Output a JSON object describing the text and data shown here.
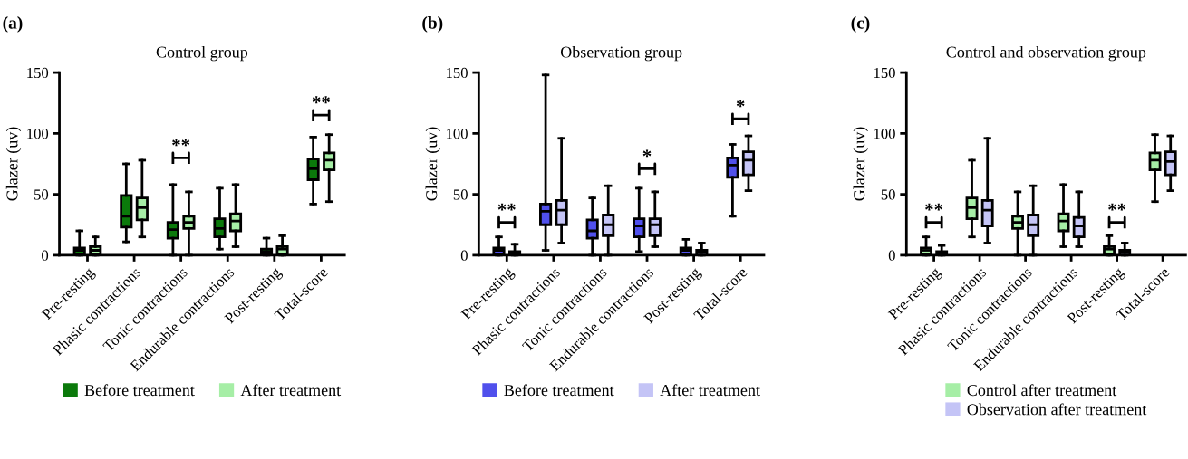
{
  "chart_data": [
    {
      "type": "box",
      "title": "Control group",
      "ylabel": "Glazer (uv)",
      "categories": [
        "Pre-resting",
        "Phasic contractions",
        "Tonic contractions",
        "Endurable contractions",
        "Post-resting",
        "Total-score"
      ],
      "ylim": [
        0,
        150
      ],
      "yticks": [
        0,
        50,
        100,
        150
      ],
      "grid": false,
      "legend": "bottom",
      "series": [
        {
          "name": "Before treatment",
          "color": "#0b7a0b",
          "boxes": [
            {
              "low": 0,
              "q1": 1,
              "median": 4,
              "q3": 6,
              "high": 20
            },
            {
              "low": 11,
              "q1": 23,
              "median": 32,
              "q3": 49,
              "high": 75
            },
            {
              "low": 0,
              "q1": 14,
              "median": 21,
              "q3": 27,
              "high": 58
            },
            {
              "low": 5,
              "q1": 15,
              "median": 22,
              "q3": 30,
              "high": 55
            },
            {
              "low": 0,
              "q1": 1,
              "median": 3,
              "q3": 5,
              "high": 14
            },
            {
              "low": 42,
              "q1": 62,
              "median": 71,
              "q3": 79,
              "high": 97
            }
          ]
        },
        {
          "name": "After treatment",
          "color": "#a6eea6",
          "boxes": [
            {
              "low": 0,
              "q1": 1,
              "median": 4,
              "q3": 7,
              "high": 15
            },
            {
              "low": 15,
              "q1": 29,
              "median": 39,
              "q3": 47,
              "high": 78
            },
            {
              "low": 0,
              "q1": 22,
              "median": 27,
              "q3": 32,
              "high": 52
            },
            {
              "low": 7,
              "q1": 20,
              "median": 28,
              "q3": 34,
              "high": 58
            },
            {
              "low": 0,
              "q1": 1,
              "median": 5,
              "q3": 7,
              "high": 16
            },
            {
              "low": 44,
              "q1": 70,
              "median": 78,
              "q3": 84,
              "high": 99
            }
          ]
        }
      ],
      "annotations": [
        "(a)",
        {
          "text": "**",
          "x": "Tonic contractions",
          "y": 80
        },
        {
          "text": "**",
          "x": "Total-score",
          "y": 115
        }
      ]
    },
    {
      "type": "box",
      "title": "Observation group",
      "ylabel": "Glazer (uv)",
      "categories": [
        "Pre-resting",
        "Phasic contractions",
        "Tonic contractions",
        "Endurable contractions",
        "Post-resting",
        "Total-score"
      ],
      "ylim": [
        0,
        150
      ],
      "yticks": [
        0,
        50,
        100,
        150
      ],
      "grid": false,
      "legend": "bottom",
      "series": [
        {
          "name": "Before treatment",
          "color": "#5050ec",
          "boxes": [
            {
              "low": 0,
              "q1": 1,
              "median": 4,
              "q3": 6,
              "high": 15
            },
            {
              "low": 4,
              "q1": 25,
              "median": 36,
              "q3": 42,
              "high": 148
            },
            {
              "low": 0,
              "q1": 14,
              "median": 20,
              "q3": 29,
              "high": 47
            },
            {
              "low": 3,
              "q1": 15,
              "median": 24,
              "q3": 30,
              "high": 55
            },
            {
              "low": 0,
              "q1": 1,
              "median": 4,
              "q3": 6,
              "high": 13
            },
            {
              "low": 32,
              "q1": 64,
              "median": 74,
              "q3": 80,
              "high": 91
            }
          ]
        },
        {
          "name": "After treatment",
          "color": "#c4c4f6",
          "boxes": [
            {
              "low": 0,
              "q1": 0,
              "median": 1,
              "q3": 3,
              "high": 9
            },
            {
              "low": 10,
              "q1": 25,
              "median": 37,
              "q3": 45,
              "high": 96
            },
            {
              "low": 0,
              "q1": 16,
              "median": 25,
              "q3": 33,
              "high": 57
            },
            {
              "low": 7,
              "q1": 16,
              "median": 25,
              "q3": 30,
              "high": 52
            },
            {
              "low": 0,
              "q1": 0,
              "median": 2,
              "q3": 4,
              "high": 10
            },
            {
              "low": 53,
              "q1": 66,
              "median": 78,
              "q3": 85,
              "high": 98
            }
          ]
        }
      ],
      "annotations": [
        "(b)",
        {
          "text": "**",
          "x": "Pre-resting",
          "y": 27
        },
        {
          "text": "*",
          "x": "Endurable contractions",
          "y": 71
        },
        {
          "text": "*",
          "x": "Total-score",
          "y": 112
        }
      ]
    },
    {
      "type": "box",
      "title": "Control and observation group",
      "ylabel": "Glazer (uv)",
      "categories": [
        "Pre-resting",
        "Phasic contractions",
        "Tonic contractions",
        "Endurable contractions",
        "Post-resting",
        "Total-score"
      ],
      "ylim": [
        0,
        150
      ],
      "yticks": [
        0,
        50,
        100,
        150
      ],
      "grid": false,
      "legend": "bottom",
      "series": [
        {
          "name": "Control after treatment",
          "color": "#a6eea6",
          "boxes": [
            {
              "low": 0,
              "q1": 1,
              "median": 4,
              "q3": 6,
              "high": 15
            },
            {
              "low": 15,
              "q1": 30,
              "median": 39,
              "q3": 47,
              "high": 78
            },
            {
              "low": 0,
              "q1": 22,
              "median": 27,
              "q3": 32,
              "high": 52
            },
            {
              "low": 7,
              "q1": 20,
              "median": 28,
              "q3": 34,
              "high": 58
            },
            {
              "low": 0,
              "q1": 1,
              "median": 5,
              "q3": 7,
              "high": 16
            },
            {
              "low": 44,
              "q1": 70,
              "median": 78,
              "q3": 84,
              "high": 99
            }
          ]
        },
        {
          "name": "Observation after treatment",
          "color": "#c4c4f6",
          "boxes": [
            {
              "low": 0,
              "q1": 0,
              "median": 1,
              "q3": 3,
              "high": 8
            },
            {
              "low": 10,
              "q1": 24,
              "median": 37,
              "q3": 45,
              "high": 96
            },
            {
              "low": 0,
              "q1": 16,
              "median": 25,
              "q3": 33,
              "high": 57
            },
            {
              "low": 7,
              "q1": 15,
              "median": 24,
              "q3": 31,
              "high": 52
            },
            {
              "low": 0,
              "q1": 0,
              "median": 2,
              "q3": 4,
              "high": 10
            },
            {
              "low": 53,
              "q1": 66,
              "median": 77,
              "q3": 85,
              "high": 98
            }
          ]
        }
      ],
      "annotations": [
        "(c)",
        {
          "text": "**",
          "x": "Pre-resting",
          "y": 27
        },
        {
          "text": "**",
          "x": "Post-resting",
          "y": 27
        }
      ]
    }
  ]
}
